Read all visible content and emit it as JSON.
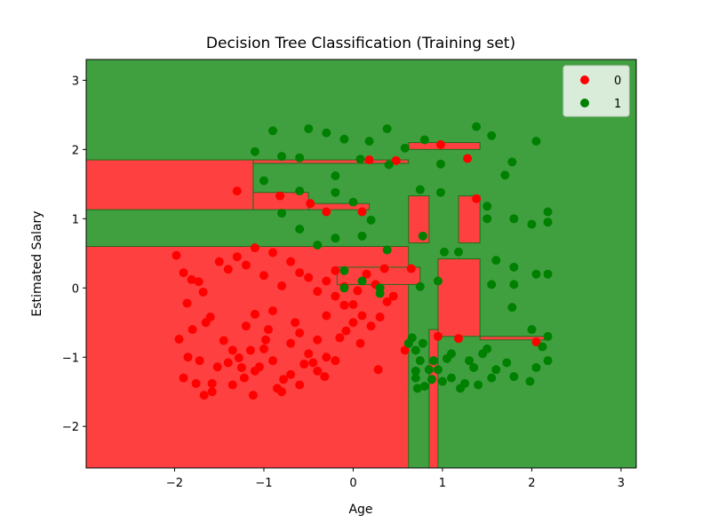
{
  "chart_data": {
    "type": "scatter",
    "title": "Decision Tree Classification (Training set)",
    "xlabel": "Age",
    "ylabel": "Estimated Salary",
    "xlim": [
      -2.99,
      3.17
    ],
    "ylim": [
      -2.6,
      3.3
    ],
    "xticks": [
      -2,
      -1,
      0,
      1,
      2,
      3
    ],
    "yticks": [
      -2,
      -1,
      0,
      1,
      2,
      3
    ],
    "xtick_labels": [
      "−2",
      "−1",
      "0",
      "1",
      "2",
      "3"
    ],
    "ytick_labels": [
      "−2",
      "−1",
      "0",
      "1",
      "2",
      "3"
    ],
    "grid": false,
    "legend_position": "top-right",
    "background_class": "1",
    "colors": {
      "class0_point": "#ff0000",
      "class1_point": "#008000",
      "class0_region": "#ff4040",
      "class1_region": "#40a040",
      "region_edge": "#1e6e1e"
    },
    "regions_class0": [
      [
        -2.99,
        1.13,
        -1.12,
        1.85
      ],
      [
        -1.12,
        1.13,
        -0.5,
        1.38
      ],
      [
        -1.12,
        1.8,
        0.62,
        1.85
      ],
      [
        -0.5,
        1.13,
        0.18,
        1.22
      ],
      [
        -2.99,
        -2.6,
        0.62,
        0.6
      ],
      [
        -0.18,
        0.05,
        0.75,
        0.3
      ],
      [
        0.62,
        0.65,
        0.85,
        1.33
      ],
      [
        0.62,
        2.0,
        1.42,
        2.1
      ],
      [
        0.85,
        -2.6,
        0.95,
        -0.6
      ],
      [
        0.95,
        -0.7,
        1.42,
        0.42
      ],
      [
        1.18,
        0.65,
        1.42,
        1.33
      ],
      [
        1.42,
        -0.75,
        2.18,
        -0.7
      ]
    ],
    "series": [
      {
        "name": "0",
        "color": "#ff0000",
        "points": [
          [
            -1.98,
            0.47
          ],
          [
            -1.9,
            0.22
          ],
          [
            -1.81,
            0.12
          ],
          [
            -1.73,
            0.09
          ],
          [
            -1.86,
            -0.22
          ],
          [
            -1.68,
            -0.06
          ],
          [
            -1.6,
            -0.42
          ],
          [
            -1.8,
            -0.6
          ],
          [
            -1.95,
            -0.74
          ],
          [
            -1.85,
            -1.0
          ],
          [
            -1.9,
            -1.3
          ],
          [
            -1.76,
            -1.38
          ],
          [
            -1.67,
            -1.55
          ],
          [
            -1.58,
            -1.5
          ],
          [
            -1.52,
            -1.14
          ],
          [
            -1.4,
            -1.08
          ],
          [
            -1.45,
            -0.76
          ],
          [
            -1.28,
            -1.01
          ],
          [
            -1.22,
            -1.3
          ],
          [
            -1.12,
            -1.55
          ],
          [
            -1.05,
            -1.14
          ],
          [
            -1.2,
            -0.55
          ],
          [
            -1.1,
            -0.38
          ],
          [
            -1.0,
            -0.88
          ],
          [
            -0.95,
            -0.6
          ],
          [
            -0.9,
            -0.33
          ],
          [
            -0.8,
            -1.5
          ],
          [
            -0.7,
            -1.25
          ],
          [
            -0.6,
            -1.4
          ],
          [
            -0.5,
            -0.95
          ],
          [
            -0.45,
            -1.08
          ],
          [
            -0.4,
            -0.75
          ],
          [
            -0.3,
            -0.4
          ],
          [
            -0.2,
            -0.12
          ],
          [
            -0.1,
            0.02
          ],
          [
            0.0,
            -0.24
          ],
          [
            0.1,
            -0.4
          ],
          [
            0.2,
            -0.55
          ],
          [
            0.3,
            -0.42
          ],
          [
            0.38,
            -0.2
          ],
          [
            -1.5,
            0.38
          ],
          [
            -1.4,
            0.27
          ],
          [
            -1.3,
            0.45
          ],
          [
            -1.2,
            0.33
          ],
          [
            -1.1,
            0.58
          ],
          [
            -1.0,
            0.18
          ],
          [
            -0.9,
            0.51
          ],
          [
            -0.8,
            0.03
          ],
          [
            -0.7,
            0.38
          ],
          [
            -0.6,
            0.22
          ],
          [
            -0.5,
            0.15
          ],
          [
            -0.4,
            -0.05
          ],
          [
            -0.3,
            0.1
          ],
          [
            -0.2,
            0.25
          ],
          [
            -0.1,
            -0.25
          ],
          [
            0.05,
            -0.04
          ],
          [
            0.15,
            0.2
          ],
          [
            0.25,
            0.05
          ],
          [
            0.35,
            0.28
          ],
          [
            0.45,
            -0.12
          ],
          [
            -0.7,
            -0.8
          ],
          [
            -0.6,
            -0.65
          ],
          [
            -0.3,
            -1.0
          ],
          [
            -0.2,
            -1.05
          ],
          [
            0.08,
            -0.8
          ],
          [
            0.28,
            -1.18
          ],
          [
            -1.35,
            -0.9
          ],
          [
            -1.25,
            -1.15
          ],
          [
            -1.15,
            -0.9
          ],
          [
            -0.9,
            -1.05
          ],
          [
            -0.85,
            -1.45
          ],
          [
            -0.4,
            -1.2
          ],
          [
            -0.98,
            -0.75
          ],
          [
            -0.65,
            -0.5
          ],
          [
            -0.15,
            -0.72
          ],
          [
            0.0,
            -0.5
          ],
          [
            -1.65,
            -0.5
          ],
          [
            -1.72,
            -1.05
          ],
          [
            -1.58,
            -1.38
          ],
          [
            -1.35,
            -1.4
          ],
          [
            -1.1,
            -1.2
          ],
          [
            -0.78,
            -1.32
          ],
          [
            -0.55,
            -1.1
          ],
          [
            -0.32,
            -1.28
          ],
          [
            -0.08,
            -0.62
          ],
          [
            -1.3,
            1.4
          ],
          [
            -0.82,
            1.33
          ],
          [
            -0.48,
            1.22
          ],
          [
            -0.3,
            1.1
          ],
          [
            0.1,
            1.1
          ],
          [
            0.18,
            1.85
          ],
          [
            0.48,
            1.84
          ],
          [
            0.98,
            2.07
          ],
          [
            1.28,
            1.87
          ],
          [
            1.38,
            1.29
          ],
          [
            0.58,
            -0.9
          ],
          [
            0.65,
            0.28
          ],
          [
            0.95,
            -0.7
          ],
          [
            1.18,
            -0.73
          ],
          [
            2.05,
            -0.78
          ]
        ]
      },
      {
        "name": "1",
        "color": "#008000",
        "points": [
          [
            -1.1,
            1.97
          ],
          [
            -0.9,
            2.27
          ],
          [
            -0.5,
            2.3
          ],
          [
            -0.3,
            2.24
          ],
          [
            -0.1,
            2.15
          ],
          [
            0.18,
            2.12
          ],
          [
            0.38,
            2.3
          ],
          [
            0.58,
            2.02
          ],
          [
            0.8,
            2.14
          ],
          [
            0.98,
            1.79
          ],
          [
            1.38,
            2.33
          ],
          [
            1.55,
            2.2
          ],
          [
            2.05,
            2.12
          ],
          [
            -1.0,
            1.55
          ],
          [
            -0.8,
            1.9
          ],
          [
            -0.6,
            1.88
          ],
          [
            -0.2,
            1.62
          ],
          [
            0.08,
            1.86
          ],
          [
            0.4,
            1.78
          ],
          [
            0.75,
            1.42
          ],
          [
            0.98,
            1.38
          ],
          [
            1.5,
            1.18
          ],
          [
            1.7,
            1.63
          ],
          [
            1.78,
            1.82
          ],
          [
            -0.8,
            1.08
          ],
          [
            -0.6,
            1.4
          ],
          [
            -0.2,
            1.38
          ],
          [
            0.0,
            1.24
          ],
          [
            0.2,
            0.98
          ],
          [
            0.78,
            0.75
          ],
          [
            1.02,
            0.52
          ],
          [
            1.5,
            1.0
          ],
          [
            1.8,
            1.0
          ],
          [
            2.0,
            0.92
          ],
          [
            2.18,
            1.1
          ],
          [
            2.18,
            0.95
          ],
          [
            -0.6,
            0.85
          ],
          [
            -0.4,
            0.62
          ],
          [
            -0.2,
            0.72
          ],
          [
            0.1,
            0.75
          ],
          [
            0.38,
            0.55
          ],
          [
            1.18,
            0.52
          ],
          [
            1.6,
            0.4
          ],
          [
            1.8,
            0.3
          ],
          [
            2.05,
            0.2
          ],
          [
            2.18,
            0.2
          ],
          [
            -0.1,
            0.25
          ],
          [
            0.1,
            0.1
          ],
          [
            0.3,
            0.0
          ],
          [
            0.95,
            0.1
          ],
          [
            1.55,
            0.05
          ],
          [
            1.8,
            0.05
          ],
          [
            1.78,
            -0.28
          ],
          [
            2.0,
            -0.6
          ],
          [
            2.18,
            -0.7
          ],
          [
            2.18,
            -1.05
          ],
          [
            2.05,
            -1.15
          ],
          [
            1.98,
            -1.35
          ],
          [
            1.8,
            -1.28
          ],
          [
            1.6,
            -1.18
          ],
          [
            1.4,
            -1.4
          ],
          [
            1.2,
            -1.45
          ],
          [
            1.0,
            -1.35
          ],
          [
            0.8,
            -1.42
          ],
          [
            0.7,
            -1.3
          ],
          [
            0.66,
            -0.72
          ],
          [
            0.78,
            -0.8
          ],
          [
            0.9,
            -1.05
          ],
          [
            1.1,
            -0.95
          ],
          [
            1.3,
            -1.05
          ],
          [
            0.7,
            -1.2
          ],
          [
            0.85,
            -1.18
          ],
          [
            1.1,
            -1.3
          ],
          [
            1.35,
            -1.15
          ],
          [
            1.5,
            -0.88
          ],
          [
            1.72,
            -1.08
          ],
          [
            0.75,
            -1.05
          ],
          [
            0.95,
            -1.18
          ],
          [
            1.25,
            -1.38
          ],
          [
            2.12,
            -0.85
          ],
          [
            0.62,
            -0.8
          ],
          [
            0.88,
            -1.32
          ],
          [
            1.05,
            -1.02
          ],
          [
            0.72,
            -1.45
          ],
          [
            1.55,
            -1.3
          ],
          [
            -0.1,
            0.0
          ],
          [
            0.3,
            -0.08
          ],
          [
            0.75,
            0.02
          ],
          [
            0.7,
            -0.9
          ],
          [
            1.45,
            -0.95
          ]
        ]
      }
    ]
  }
}
